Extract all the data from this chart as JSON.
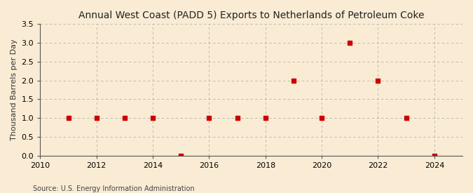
{
  "title": "Annual West Coast (PADD 5) Exports to Netherlands of Petroleum Coke",
  "ylabel": "Thousand Barrels per Day",
  "source": "Source: U.S. Energy Information Administration",
  "background_color": "#faecd4",
  "years": [
    2011,
    2012,
    2013,
    2014,
    2015,
    2016,
    2017,
    2018,
    2019,
    2020,
    2021,
    2022,
    2023,
    2024
  ],
  "values": [
    1.0,
    1.0,
    1.0,
    1.0,
    0.0,
    1.0,
    1.0,
    1.0,
    2.0,
    1.0,
    3.0,
    2.0,
    1.0,
    0.0
  ],
  "marker_color": "#cc0000",
  "marker_size": 4,
  "xlim": [
    2010,
    2025
  ],
  "ylim": [
    0.0,
    3.5
  ],
  "yticks": [
    0.0,
    0.5,
    1.0,
    1.5,
    2.0,
    2.5,
    3.0,
    3.5
  ],
  "xticks": [
    2010,
    2012,
    2014,
    2016,
    2018,
    2020,
    2022,
    2024
  ],
  "grid_color": "#b0b0b0",
  "grid_style": "--",
  "title_fontsize": 10,
  "label_fontsize": 8,
  "tick_fontsize": 8,
  "source_fontsize": 7
}
